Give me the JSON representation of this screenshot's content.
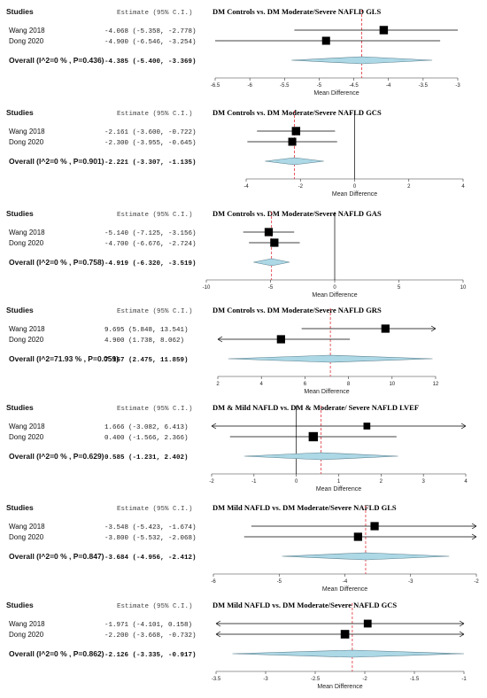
{
  "header_studies": "Studies",
  "header_estimate": "Estimate (95% C.I.)",
  "xlabel": "Mean Difference",
  "colors": {
    "diamond_fill": "#add8e6",
    "diamond_stroke": "#5a7f8c",
    "pooled_line": "#e0303a",
    "box": "#000000"
  },
  "chart_data": [
    {
      "type": "forest",
      "title": "DM Controls vs. DM Moderate/Severe NAFLD GLS",
      "xlim": [
        -6.5,
        -3
      ],
      "ticks": [
        "-6.5",
        "-6",
        "-5.5",
        "-5",
        "-4.5",
        "-4",
        "-3.5",
        "-3"
      ],
      "null_line": false,
      "studies": [
        {
          "name": "Wang 2018",
          "estimate_text": "-4.068 (-5.358, -2.778)",
          "est": -4.068,
          "lo": -5.358,
          "hi": -2.778,
          "weight": 0.55
        },
        {
          "name": "Dong 2020",
          "estimate_text": "-4.900 (-6.546, -3.254)",
          "est": -4.9,
          "lo": -6.546,
          "hi": -3.254,
          "weight": 0.45
        }
      ],
      "overall": {
        "label": "Overall (I^2=0 % , P=0.436)",
        "estimate_text": "-4.385 (-5.400, -3.369)",
        "est": -4.385,
        "lo": -5.4,
        "hi": -3.369
      }
    },
    {
      "type": "forest",
      "title": "DM Controls vs. DM Moderate/Severe NAFLD GCS",
      "xlim": [
        -4,
        4
      ],
      "ticks": [
        "-4",
        "-2",
        "0",
        "2",
        "4"
      ],
      "null_line": true,
      "studies": [
        {
          "name": "Wang 2018",
          "estimate_text": "-2.161 (-3.600, -0.722)",
          "est": -2.161,
          "lo": -3.6,
          "hi": -0.722,
          "weight": 0.55
        },
        {
          "name": "Dong 2020",
          "estimate_text": "-2.300 (-3.955, -0.645)",
          "est": -2.3,
          "lo": -3.955,
          "hi": -0.645,
          "weight": 0.45
        }
      ],
      "overall": {
        "label": "Overall (I^2=0 % , P=0.901)",
        "estimate_text": "-2.221 (-3.307, -1.135)",
        "est": -2.221,
        "lo": -3.307,
        "hi": -1.135
      }
    },
    {
      "type": "forest",
      "title": "DM Controls vs. DM Moderate/Severe NAFLD GAS",
      "xlim": [
        -10,
        10
      ],
      "ticks": [
        "-10",
        "-5",
        "0",
        "5",
        "10"
      ],
      "null_line": true,
      "studies": [
        {
          "name": "Wang 2018",
          "estimate_text": "-5.140 (-7.125, -3.156)",
          "est": -5.14,
          "lo": -7.125,
          "hi": -3.156,
          "weight": 0.5
        },
        {
          "name": "Dong 2020",
          "estimate_text": "-4.700 (-6.676, -2.724)",
          "est": -4.7,
          "lo": -6.676,
          "hi": -2.724,
          "weight": 0.5
        }
      ],
      "overall": {
        "label": "Overall (I^2=0 % , P=0.758)",
        "estimate_text": "-4.919 (-6.320, -3.519)",
        "est": -4.919,
        "lo": -6.32,
        "hi": -3.519
      }
    },
    {
      "type": "forest",
      "title": "DM Controls vs. DM Moderate/Severe NAFLD GRS",
      "xlim": [
        2,
        12
      ],
      "ticks": [
        "2",
        "4",
        "6",
        "8",
        "10",
        "12"
      ],
      "null_line": false,
      "studies": [
        {
          "name": "Wang 2018",
          "estimate_text": "9.695 (5.848, 13.541)",
          "est": 9.695,
          "lo": 5.848,
          "hi": 13.541,
          "weight": 0.5,
          "arrow_right": true
        },
        {
          "name": "Dong 2020",
          "estimate_text": "4.900 (1.738, 8.062)",
          "est": 4.9,
          "lo": 1.738,
          "hi": 8.062,
          "weight": 0.5,
          "arrow_left": true
        }
      ],
      "overall": {
        "label": "Overall (I^2=71.93 % , P=0.059)",
        "estimate_text": "7.167 (2.475, 11.859)",
        "est": 7.167,
        "lo": 2.475,
        "hi": 11.859
      }
    },
    {
      "type": "forest",
      "title": "DM & Mild NAFLD vs. DM & Moderate/ Severe NAFLD LVEF",
      "xlim": [
        -2,
        4
      ],
      "ticks": [
        "-2",
        "-1",
        "0",
        "1",
        "2",
        "3",
        "4"
      ],
      "null_line": true,
      "studies": [
        {
          "name": "Wang 2018",
          "estimate_text": "1.666 (-3.082, 6.413)",
          "est": 1.666,
          "lo": -3.082,
          "hi": 6.413,
          "weight": 0.2,
          "arrow_left": true,
          "arrow_right": true
        },
        {
          "name": "Dong 2020",
          "estimate_text": "0.400 (-1.566, 2.366)",
          "est": 0.4,
          "lo": -1.566,
          "hi": 2.366,
          "weight": 0.8
        }
      ],
      "overall": {
        "label": "Overall (I^2=0 % , P=0.629)",
        "estimate_text": "0.585 (-1.231, 2.402)",
        "est": 0.585,
        "lo": -1.231,
        "hi": 2.402
      }
    },
    {
      "type": "forest",
      "title": "DM Mild NAFLD vs. DM Moderate/Severe NAFLD GLS",
      "xlim": [
        -6,
        -2
      ],
      "ticks": [
        "-6",
        "-5",
        "-4",
        "-3",
        "-2"
      ],
      "null_line": false,
      "studies": [
        {
          "name": "Wang 2018",
          "estimate_text": "-3.548 (-5.423, -1.674)",
          "est": -3.548,
          "lo": -5.423,
          "hi": -1.674,
          "weight": 0.5,
          "arrow_right": true
        },
        {
          "name": "Dong 2020",
          "estimate_text": "-3.800 (-5.532, -2.068)",
          "est": -3.8,
          "lo": -5.532,
          "hi": -2.068,
          "weight": 0.5,
          "arrow_right": true
        }
      ],
      "overall": {
        "label": "Overall (I^2=0 % , P=0.847)",
        "estimate_text": "-3.684 (-4.956, -2.412)",
        "est": -3.684,
        "lo": -4.956,
        "hi": -2.412
      }
    },
    {
      "type": "forest",
      "title": "DM Mild NAFLD vs. DM Moderate/Severe NAFLD GCS",
      "xlim": [
        -3.5,
        -1
      ],
      "ticks": [
        "-3.5",
        "-3",
        "-2.5",
        "-2",
        "-1.5",
        "-1"
      ],
      "null_line": false,
      "studies": [
        {
          "name": "Wang 2018",
          "estimate_text": "-1.971 (-4.101, 0.158)",
          "est": -1.971,
          "lo": -4.101,
          "hi": 0.158,
          "weight": 0.4,
          "arrow_left": true,
          "arrow_right": true
        },
        {
          "name": "Dong 2020",
          "estimate_text": "-2.200 (-3.668, -0.732)",
          "est": -2.2,
          "lo": -3.668,
          "hi": -0.732,
          "weight": 0.6,
          "arrow_left": true,
          "arrow_right": true
        }
      ],
      "overall": {
        "label": "Overall (I^2=0 % , P=0.862)",
        "estimate_text": "-2.126 (-3.335, -0.917)",
        "est": -2.126,
        "lo": -3.335,
        "hi": -0.917
      }
    }
  ]
}
